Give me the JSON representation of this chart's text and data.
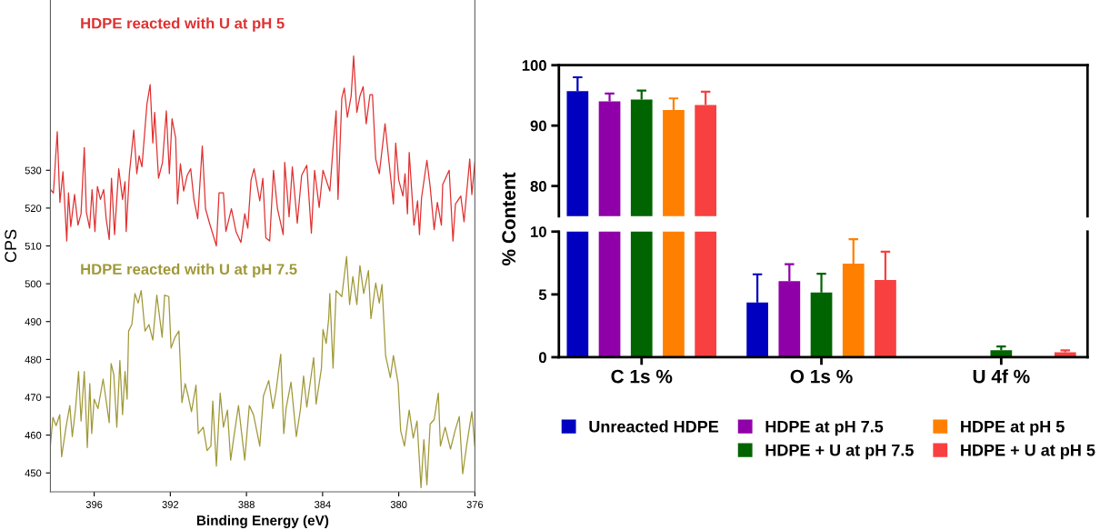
{
  "chart_data": [
    {
      "type": "line",
      "xlabel": "Binding Energy (eV)",
      "ylabel": "CPS",
      "xlim": [
        398.3,
        376
      ],
      "ylim": [
        445,
        575
      ],
      "xticks": [
        396,
        392,
        388,
        384,
        380,
        376
      ],
      "yticks": [
        450,
        460,
        470,
        480,
        490,
        500,
        510,
        520,
        530
      ],
      "grid": false,
      "legend": false,
      "marker": "none",
      "line_style": "solid",
      "series": [
        {
          "name": "HDPE reacted with U at pH 5",
          "color": "#e03030",
          "x": [
            398.3,
            398.14,
            397.94,
            397.8,
            397.64,
            397.44,
            397.35,
            397.23,
            397.03,
            396.85,
            396.69,
            396.52,
            396.41,
            396.24,
            396.11,
            395.96,
            395.83,
            395.67,
            395.5,
            395.37,
            395.21,
            395.09,
            394.93,
            394.71,
            394.51,
            394.38,
            394.32,
            394.15,
            393.92,
            393.76,
            393.64,
            393.49,
            393.23,
            393.06,
            392.92,
            392.82,
            392.62,
            392.41,
            392.21,
            392.05,
            391.91,
            391.72,
            391.62,
            391.47,
            391.3,
            391.11,
            390.93,
            390.76,
            390.56,
            390.32,
            390.15,
            389.94,
            389.58,
            389.44,
            389.21,
            389.08,
            388.79,
            388.55,
            388.29,
            388.09,
            387.93,
            387.76,
            387.6,
            387.3,
            387.14,
            386.98,
            386.78,
            386.58,
            386.37,
            386.07,
            385.99,
            385.76,
            385.59,
            385.33,
            385.1,
            384.83,
            384.59,
            384.42,
            384.18,
            383.98,
            383.62,
            383.45,
            383.29,
            383.19,
            382.99,
            382.86,
            382.7,
            382.5,
            382.37,
            382.2,
            382.04,
            381.87,
            381.71,
            381.51,
            381.38,
            381.21,
            381.02,
            380.72,
            380.52,
            380.28,
            380.16,
            380.0,
            379.78,
            379.67,
            379.54,
            379.45,
            379.2,
            379.01,
            378.91,
            378.8,
            378.52,
            378.35,
            378.14,
            377.97,
            377.76,
            377.69,
            377.35,
            377.15,
            377.02,
            376.74,
            376.57,
            376.27,
            376.16,
            376.0
          ],
          "values": [
            524.9,
            524,
            540.2,
            521.5,
            529.6,
            511.3,
            524,
            515.1,
            523.6,
            515.5,
            518.5,
            536,
            518.9,
            514.7,
            524.9,
            513.8,
            525.7,
            522.3,
            524.9,
            517.2,
            511.7,
            527.9,
            513,
            530.4,
            522.3,
            527,
            513.8,
            529.1,
            540.6,
            529.1,
            533.8,
            530.9,
            547.4,
            552.6,
            537.2,
            545.3,
            527.9,
            532.1,
            545.7,
            529.1,
            543.6,
            538.5,
            521.1,
            531.7,
            524.5,
            528.7,
            530.4,
            522.3,
            517.2,
            536.4,
            519.8,
            516,
            510,
            524,
            524,
            513.8,
            519.8,
            513.8,
            510.9,
            518.5,
            514.7,
            527.4,
            530.4,
            521.9,
            527.9,
            512.1,
            511.3,
            530,
            519.8,
            513,
            532.1,
            517.7,
            530.9,
            516,
            528.7,
            531.3,
            513.4,
            530,
            520.2,
            530,
            524.5,
            536,
            545.7,
            522.3,
            549.1,
            551.7,
            544,
            549.6,
            560.2,
            545.3,
            549.6,
            552.1,
            542.3,
            550,
            550,
            533,
            529.1,
            542.3,
            532.6,
            521.1,
            537.2,
            527.4,
            523.2,
            529.1,
            518.5,
            534.7,
            515.5,
            521.9,
            513,
            522.8,
            532.6,
            525.7,
            514.3,
            521.5,
            515.5,
            526.2,
            530,
            511.3,
            521.1,
            523.2,
            516.4,
            533,
            523.6,
            532.1
          ]
        },
        {
          "name": "HDPE reacted with U at pH 7.5",
          "color": "#a09838",
          "x": [
            398.3,
            398.17,
            398.0,
            397.81,
            397.71,
            397.48,
            397.28,
            397.15,
            396.98,
            396.82,
            396.69,
            396.52,
            396.36,
            396.23,
            396.13,
            396.0,
            395.8,
            395.53,
            395.21,
            395.11,
            394.97,
            394.81,
            394.65,
            394.51,
            394.38,
            394.27,
            394.19,
            394.02,
            393.86,
            393.69,
            393.53,
            393.33,
            393.12,
            392.92,
            392.71,
            392.43,
            392.3,
            392.08,
            391.96,
            391.75,
            391.55,
            391.39,
            391.22,
            391.06,
            390.89,
            390.65,
            390.53,
            390.27,
            390.07,
            389.87,
            389.77,
            389.58,
            389.38,
            389.21,
            389.0,
            388.83,
            388.67,
            388.42,
            388.09,
            387.85,
            387.63,
            387.3,
            387.11,
            386.83,
            386.61,
            386.45,
            386.2,
            386.04,
            385.92,
            385.66,
            385.38,
            385.17,
            385.0,
            384.83,
            384.47,
            384.34,
            384.06,
            383.98,
            383.81,
            383.68,
            383.62,
            383.45,
            383.29,
            382.99,
            382.74,
            382.58,
            382.41,
            382.2,
            382.04,
            381.84,
            381.59,
            381.46,
            381.21,
            381.02,
            380.88,
            380.69,
            380.44,
            380.28,
            380.03,
            379.9,
            379.7,
            379.45,
            379.24,
            379.04,
            378.83,
            378.68,
            378.52,
            378.35,
            378.14,
            377.92,
            377.81,
            377.56,
            377.28,
            377.04,
            376.82,
            376.64,
            376.41,
            376.16,
            376.0
          ],
          "values": [
            457.1,
            464.7,
            462.5,
            465.4,
            454.3,
            462.1,
            467.8,
            459.6,
            467,
            476.8,
            463.7,
            476.8,
            456.7,
            473.6,
            460.4,
            469.5,
            467,
            474.8,
            463.3,
            478.9,
            476,
            462.1,
            479.7,
            465.4,
            476.8,
            469.5,
            487.5,
            489.2,
            497.4,
            494.9,
            498.2,
            487.5,
            489.2,
            485.1,
            497,
            485.9,
            497,
            496.6,
            483,
            485.9,
            487.5,
            468.6,
            473.6,
            470.3,
            466.2,
            473.2,
            460.4,
            462.1,
            455.9,
            457.1,
            469,
            451.8,
            471.1,
            462.1,
            466.6,
            453.4,
            459.2,
            467.8,
            453.4,
            467.8,
            465.4,
            457.1,
            470.3,
            474.4,
            467,
            471.5,
            481.4,
            460.4,
            467,
            474,
            459.6,
            466.6,
            475.6,
            467.4,
            480.5,
            468.2,
            477.7,
            487.9,
            484.2,
            490.8,
            497.4,
            477.7,
            498.2,
            496.6,
            507.2,
            494.5,
            501.9,
            494.5,
            504.8,
            497.4,
            503.5,
            490.8,
            500.2,
            494.9,
            499.8,
            481,
            475.2,
            481,
            473.6,
            461.2,
            457.1,
            466.6,
            459.2,
            463.7,
            446.1,
            458.8,
            446.9,
            462.9,
            464.1,
            471.1,
            457.1,
            462.1,
            456.3,
            461.2,
            464.9,
            449.8,
            458,
            466.2,
            457.1
          ]
        }
      ]
    },
    {
      "type": "bar",
      "ylim": [
        75,
        100
      ],
      "yticks": [
        80,
        90,
        100
      ],
      "tick_labels": "y",
      "grid": false,
      "series": [
        {
          "color": "#0000c0",
          "values": [
            95.7,
            null,
            null
          ],
          "errors": [
            [
              95.7,
              98.0
            ],
            null,
            null
          ]
        },
        {
          "color": "#9000a8",
          "values": [
            94.0,
            null,
            null
          ],
          "errors": [
            [
              94.0,
              95.3
            ],
            null,
            null
          ]
        },
        {
          "color": "#006400",
          "values": [
            94.3,
            null,
            null
          ],
          "errors": [
            [
              94.3,
              95.8
            ],
            null,
            null
          ]
        },
        {
          "color": "#ff8000",
          "values": [
            92.6,
            null,
            null
          ],
          "errors": [
            [
              92.6,
              94.5
            ],
            null,
            null
          ]
        },
        {
          "color": "#f84040",
          "values": [
            93.4,
            null,
            null
          ],
          "errors": [
            [
              93.4,
              95.6
            ],
            null,
            null
          ]
        }
      ]
    },
    {
      "type": "bar",
      "categories": [
        "C 1s %",
        "O 1s %",
        "U 4f %"
      ],
      "ylabel": "% Content",
      "ylim": [
        0,
        10
      ],
      "yticks": [
        0,
        5,
        10
      ],
      "grid": false,
      "legend": "bottom",
      "series": [
        {
          "name": "Unreacted HDPE",
          "color": "#0000c0",
          "values": [
            null,
            4.35,
            null
          ],
          "errors": [
            null,
            [
              4.35,
              6.6
            ],
            null
          ]
        },
        {
          "name": "HDPE at pH 7.5",
          "color": "#9000a8",
          "values": [
            null,
            6.05,
            null
          ],
          "errors": [
            null,
            [
              6.05,
              7.4
            ],
            null
          ]
        },
        {
          "name": "HDPE + U at pH 7.5",
          "color": "#006400",
          "values": [
            null,
            5.15,
            0.55
          ],
          "errors": [
            null,
            [
              5.15,
              6.65
            ],
            [
              0.55,
              0.85
            ]
          ]
        },
        {
          "name": "HDPE at pH 5",
          "color": "#ff8000",
          "values": [
            null,
            7.45,
            null
          ],
          "errors": [
            null,
            [
              7.45,
              9.4
            ],
            null
          ]
        },
        {
          "name": "HDPE + U at pH 5",
          "color": "#f84040",
          "values": [
            null,
            6.15,
            0.4
          ],
          "errors": [
            null,
            [
              6.15,
              8.4
            ],
            [
              0.4,
              0.55
            ]
          ]
        }
      ]
    }
  ]
}
